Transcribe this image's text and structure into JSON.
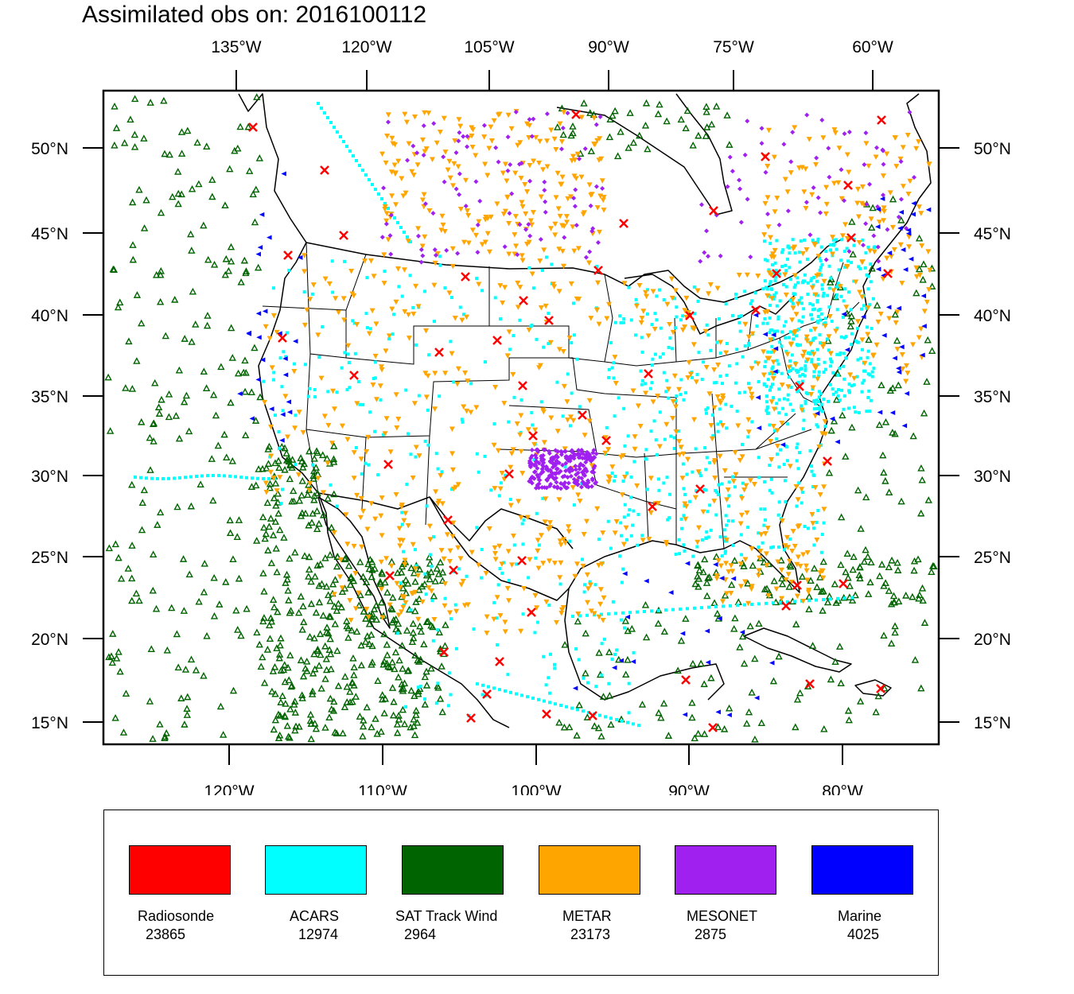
{
  "title": "Assimilated obs on: 2016100112",
  "top_axis_labels": [
    "135°W",
    "120°W",
    "105°W",
    "90°W",
    "75°W",
    "60°W"
  ],
  "bottom_axis_labels": [
    "120°W",
    "110°W",
    "100°W",
    "90°W",
    "80°W"
  ],
  "lat_labels": [
    "50°N",
    "45°N",
    "40°N",
    "35°N",
    "30°N",
    "25°N",
    "20°N",
    "15°N"
  ],
  "colors": {
    "radiosonde": "#ff0000",
    "acars": "#00ffff",
    "sat_track_wind": "#006400",
    "metar": "#ffa500",
    "mesonet": "#a020f0",
    "marine": "#0000ff"
  },
  "legend": [
    {
      "name": "Radiosonde",
      "count": "23865",
      "color": "#ff0000",
      "marker": "x"
    },
    {
      "name": "ACARS",
      "count": "12974",
      "color": "#00ffff",
      "marker": "square"
    },
    {
      "name": "SAT Track Wind",
      "count": "2964",
      "color": "#006400",
      "marker": "triangle-up"
    },
    {
      "name": "METAR",
      "count": "23173",
      "color": "#ffa500",
      "marker": "triangle-down"
    },
    {
      "name": "MESONET",
      "count": "2875",
      "color": "#a020f0",
      "marker": "diamond"
    },
    {
      "name": "Marine",
      "count": "4025",
      "color": "#0000ff",
      "marker": "triangle-left"
    }
  ]
}
